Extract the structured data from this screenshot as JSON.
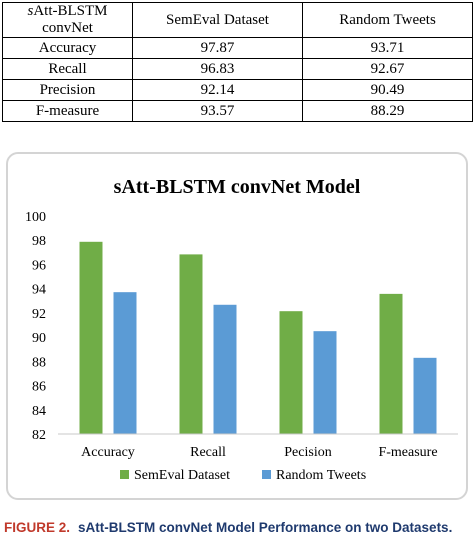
{
  "table": {
    "header": {
      "metric_prefix": "s",
      "metric_rest": "Att-BLSTM convNet",
      "col1": "SemEval Dataset",
      "col2": "Random Tweets"
    },
    "rows": [
      {
        "metric": "Accuracy",
        "semeval": "97.87",
        "random": "93.71"
      },
      {
        "metric": "Recall",
        "semeval": "96.83",
        "random": "92.67"
      },
      {
        "metric": "Precision",
        "semeval": "92.14",
        "random": "90.49"
      },
      {
        "metric": "F-measure",
        "semeval": "93.57",
        "random": "88.29"
      }
    ]
  },
  "chart_data": {
    "type": "bar",
    "title": "sAtt-BLSTM convNet Model",
    "categories": [
      "Accuracy",
      "Recall",
      "Pecision",
      "F-measure"
    ],
    "series": [
      {
        "name": "SemEval Dataset",
        "values": [
          97.87,
          96.83,
          92.14,
          93.57
        ],
        "color": "#70ad47"
      },
      {
        "name": "Random Tweets",
        "values": [
          93.71,
          92.67,
          90.49,
          88.29
        ],
        "color": "#5b9bd5"
      }
    ],
    "ylim": [
      82,
      100
    ],
    "yticks": [
      "82",
      "84",
      "86",
      "88",
      "90",
      "92",
      "94",
      "96",
      "98",
      "100"
    ],
    "grid": false,
    "legend_position": "bottom"
  },
  "caption": {
    "label": "FIGURE 2.",
    "text": "sAtt-BLSTM convNet Model Performance on two Datasets."
  }
}
